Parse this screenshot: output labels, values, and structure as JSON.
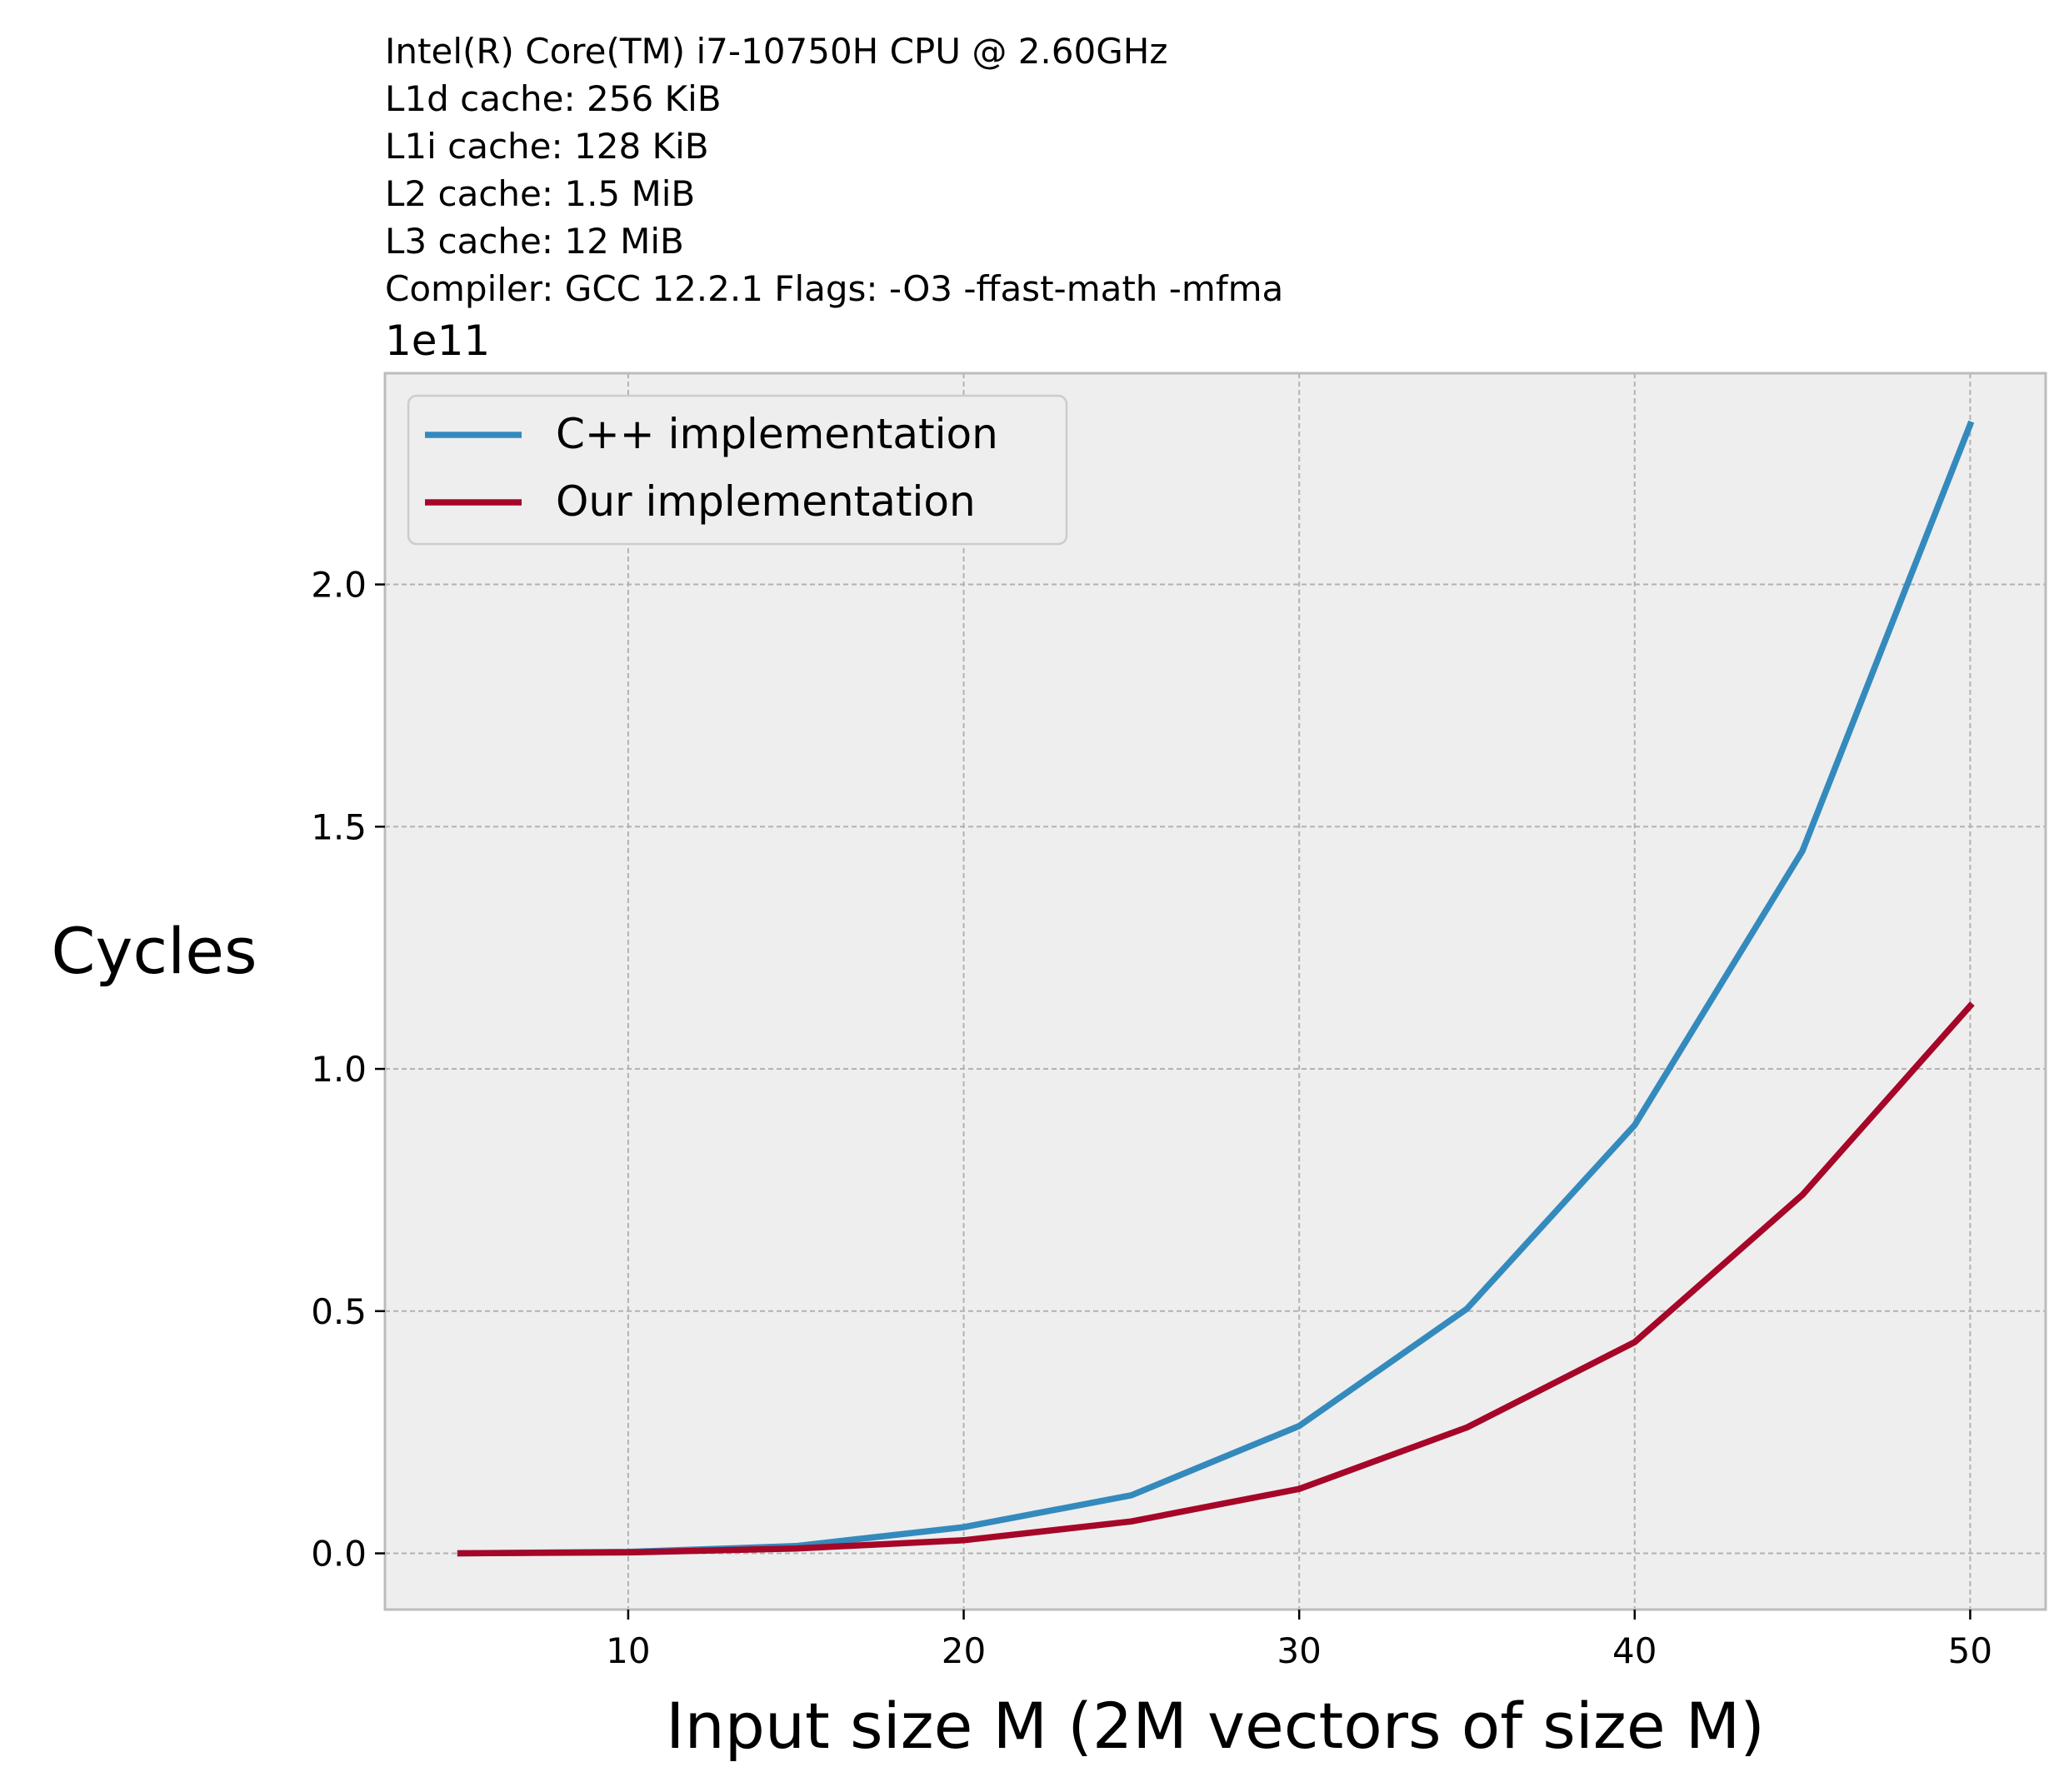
{
  "chart_data": {
    "type": "line",
    "title_lines": [
      "Intel(R) Core(TM) i7-10750H CPU @ 2.60GHz",
      "L1d cache: 256 KiB",
      "L1i cache: 128 KiB",
      "L2 cache: 1.5 MiB",
      "L3 cache: 12 MiB",
      "Compiler:  GCC 12.2.1 Flags: -O3 -ffast-math -mfma"
    ],
    "xlabel": "Input size M (2M vectors of size M)",
    "ylabel": "Cycles",
    "y_offset_text": "1e11",
    "y_scale": 100000000000,
    "xlim": [
      2.75,
      52.25
    ],
    "ylim": [
      -0.116,
      2.436
    ],
    "xticks": [
      10,
      20,
      30,
      40,
      50
    ],
    "xtick_labels": [
      "10",
      "20",
      "30",
      "40",
      "50"
    ],
    "yticks": [
      0.0,
      0.5,
      1.0,
      1.5,
      2.0
    ],
    "ytick_labels": [
      "0.0",
      "0.5",
      "1.0",
      "1.5",
      "2.0"
    ],
    "grid": true,
    "legend_position": "upper-left",
    "x": [
      5,
      10,
      15,
      20,
      25,
      30,
      35,
      40,
      45,
      50
    ],
    "series": [
      {
        "name": "C++ implementation",
        "color": "#348ABD",
        "values": [
          0.0,
          0.003,
          0.015,
          0.054,
          0.12,
          0.263,
          0.505,
          0.884,
          1.45,
          2.33
        ]
      },
      {
        "name": "Our implementation",
        "color": "#A60628",
        "values": [
          0.0,
          0.002,
          0.01,
          0.027,
          0.066,
          0.133,
          0.26,
          0.436,
          0.74,
          1.13
        ]
      }
    ],
    "colors": {
      "plot_background": "#EEEEEE",
      "grid": "#B2B2B2",
      "frame": "#BCBCBC"
    }
  }
}
